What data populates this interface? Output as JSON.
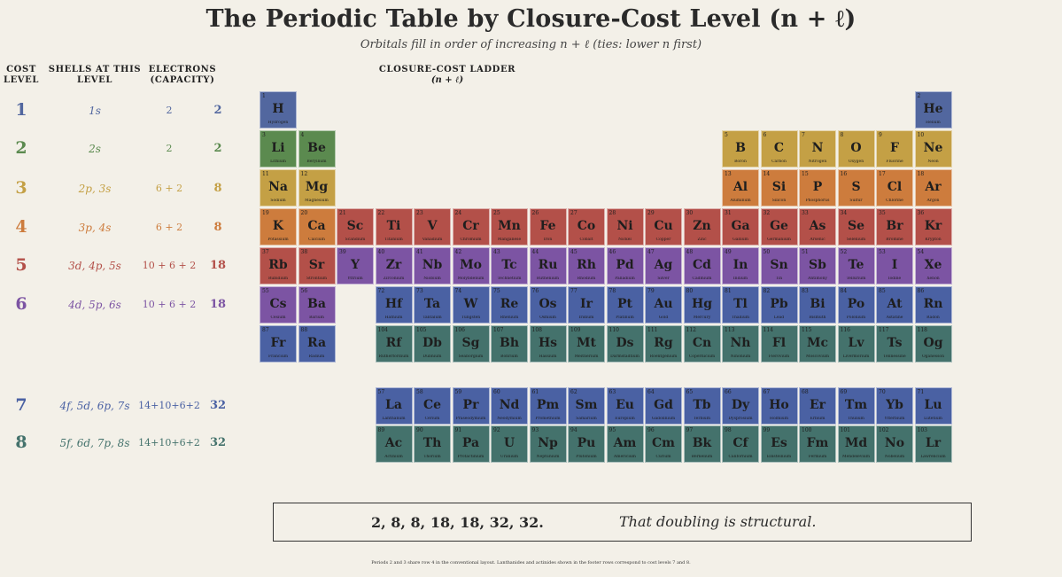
{
  "page": {
    "title": "The Periodic Table by Closure-Cost Level (n + ℓ)",
    "subtitle": "Orbitals fill in order of increasing n + ℓ (ties: lower n first)",
    "footnote": "Periods 2 and 3 share row 4 in the conventional layout. Lanthanides and actinides shown in the footer rows correspond to cost levels 7 and 8."
  },
  "left_headers": {
    "cost_level": [
      "COST",
      "LEVEL"
    ],
    "shells": [
      "SHELLS AT THIS",
      "LEVEL"
    ],
    "electrons": [
      "ELECTRONS",
      "(CAPACITY)"
    ]
  },
  "ladder_header": {
    "title": "CLOSURE-COST LADDER",
    "sub": "(n + ℓ)"
  },
  "colors": {
    "1": "#52679f",
    "2": "#5b8a4f",
    "3": "#c4a045",
    "4": "#cd7c3d",
    "5": "#b35049",
    "6": "#7c54a3",
    "7": "#4a61a3",
    "8": "#44726c",
    "bg": "#f3f0e8"
  },
  "levels": [
    {
      "level": "1",
      "shells": "1s",
      "electrons": "2",
      "total": "2",
      "color": "#52679f"
    },
    {
      "level": "2",
      "shells": "2s",
      "electrons": "2",
      "total": "2",
      "color": "#5b8a4f"
    },
    {
      "level": "3",
      "shells": "2p, 3s",
      "electrons": "6 + 2",
      "total": "8",
      "color": "#c4a045"
    },
    {
      "level": "4",
      "shells": "3p, 4s",
      "electrons": "6 + 2",
      "total": "8",
      "color": "#cd7c3d"
    },
    {
      "level": "5",
      "shells": "3d, 4p, 5s",
      "electrons": "10 + 6 + 2",
      "total": "18",
      "color": "#b35049"
    },
    {
      "level": "6",
      "shells": "4d, 5p, 6s",
      "electrons": "10 + 6 + 2",
      "total": "18",
      "color": "#7c54a3"
    },
    {
      "level": "7",
      "shells": "4f, 5d, 6p, 7s",
      "electrons": "14+10+6+2",
      "total": "32",
      "color": "#4a61a3"
    },
    {
      "level": "8",
      "shells": "5f, 6d, 7p, 8s",
      "electrons": "14+10+6+2",
      "total": "32",
      "color": "#44726c"
    }
  ],
  "elements": [
    {
      "z": 1,
      "s": "H",
      "n": "Hydrogen",
      "r": 1,
      "c": 1,
      "lv": 1
    },
    {
      "z": 2,
      "s": "He",
      "n": "Helium",
      "r": 1,
      "c": 18,
      "lv": 1
    },
    {
      "z": 3,
      "s": "Li",
      "n": "Lithium",
      "r": 2,
      "c": 1,
      "lv": 2
    },
    {
      "z": 4,
      "s": "Be",
      "n": "Beryllium",
      "r": 2,
      "c": 2,
      "lv": 2
    },
    {
      "z": 5,
      "s": "B",
      "n": "Boron",
      "r": 2,
      "c": 13,
      "lv": 3
    },
    {
      "z": 6,
      "s": "C",
      "n": "Carbon",
      "r": 2,
      "c": 14,
      "lv": 3
    },
    {
      "z": 7,
      "s": "N",
      "n": "Nitrogen",
      "r": 2,
      "c": 15,
      "lv": 3
    },
    {
      "z": 8,
      "s": "O",
      "n": "Oxygen",
      "r": 2,
      "c": 16,
      "lv": 3
    },
    {
      "z": 9,
      "s": "F",
      "n": "Fluorine",
      "r": 2,
      "c": 17,
      "lv": 3
    },
    {
      "z": 10,
      "s": "Ne",
      "n": "Neon",
      "r": 2,
      "c": 18,
      "lv": 3
    },
    {
      "z": 11,
      "s": "Na",
      "n": "Sodium",
      "r": 3,
      "c": 1,
      "lv": 3
    },
    {
      "z": 12,
      "s": "Mg",
      "n": "Magnesium",
      "r": 3,
      "c": 2,
      "lv": 3
    },
    {
      "z": 13,
      "s": "Al",
      "n": "Aluminum",
      "r": 3,
      "c": 13,
      "lv": 4
    },
    {
      "z": 14,
      "s": "Si",
      "n": "Silicon",
      "r": 3,
      "c": 14,
      "lv": 4
    },
    {
      "z": 15,
      "s": "P",
      "n": "Phosphorus",
      "r": 3,
      "c": 15,
      "lv": 4
    },
    {
      "z": 16,
      "s": "S",
      "n": "Sulfur",
      "r": 3,
      "c": 16,
      "lv": 4
    },
    {
      "z": 17,
      "s": "Cl",
      "n": "Chlorine",
      "r": 3,
      "c": 17,
      "lv": 4
    },
    {
      "z": 18,
      "s": "Ar",
      "n": "Argon",
      "r": 3,
      "c": 18,
      "lv": 4
    },
    {
      "z": 19,
      "s": "K",
      "n": "Potassium",
      "r": 4,
      "c": 1,
      "lv": 4
    },
    {
      "z": 20,
      "s": "Ca",
      "n": "Calcium",
      "r": 4,
      "c": 2,
      "lv": 4
    },
    {
      "z": 21,
      "s": "Sc",
      "n": "Scandium",
      "r": 4,
      "c": 3,
      "lv": 5
    },
    {
      "z": 22,
      "s": "Ti",
      "n": "Titanium",
      "r": 4,
      "c": 4,
      "lv": 5
    },
    {
      "z": 23,
      "s": "V",
      "n": "Vanadium",
      "r": 4,
      "c": 5,
      "lv": 5
    },
    {
      "z": 24,
      "s": "Cr",
      "n": "Chromium",
      "r": 4,
      "c": 6,
      "lv": 5
    },
    {
      "z": 25,
      "s": "Mn",
      "n": "Manganese",
      "r": 4,
      "c": 7,
      "lv": 5
    },
    {
      "z": 26,
      "s": "Fe",
      "n": "Iron",
      "r": 4,
      "c": 8,
      "lv": 5
    },
    {
      "z": 27,
      "s": "Co",
      "n": "Cobalt",
      "r": 4,
      "c": 9,
      "lv": 5
    },
    {
      "z": 28,
      "s": "Ni",
      "n": "Nickel",
      "r": 4,
      "c": 10,
      "lv": 5
    },
    {
      "z": 29,
      "s": "Cu",
      "n": "Copper",
      "r": 4,
      "c": 11,
      "lv": 5
    },
    {
      "z": 30,
      "s": "Zn",
      "n": "Zinc",
      "r": 4,
      "c": 12,
      "lv": 5
    },
    {
      "z": 31,
      "s": "Ga",
      "n": "Gallium",
      "r": 4,
      "c": 13,
      "lv": 5
    },
    {
      "z": 32,
      "s": "Ge",
      "n": "Germanium",
      "r": 4,
      "c": 14,
      "lv": 5
    },
    {
      "z": 33,
      "s": "As",
      "n": "Arsenic",
      "r": 4,
      "c": 15,
      "lv": 5
    },
    {
      "z": 34,
      "s": "Se",
      "n": "Selenium",
      "r": 4,
      "c": 16,
      "lv": 5
    },
    {
      "z": 35,
      "s": "Br",
      "n": "Bromine",
      "r": 4,
      "c": 17,
      "lv": 5
    },
    {
      "z": 36,
      "s": "Kr",
      "n": "Krypton",
      "r": 4,
      "c": 18,
      "lv": 5
    },
    {
      "z": 37,
      "s": "Rb",
      "n": "Rubidium",
      "r": 5,
      "c": 1,
      "lv": 5
    },
    {
      "z": 38,
      "s": "Sr",
      "n": "Strontium",
      "r": 5,
      "c": 2,
      "lv": 5
    },
    {
      "z": 39,
      "s": "Y",
      "n": "Yttrium",
      "r": 5,
      "c": 3,
      "lv": 6
    },
    {
      "z": 40,
      "s": "Zr",
      "n": "Zirconium",
      "r": 5,
      "c": 4,
      "lv": 6
    },
    {
      "z": 41,
      "s": "Nb",
      "n": "Niobium",
      "r": 5,
      "c": 5,
      "lv": 6
    },
    {
      "z": 42,
      "s": "Mo",
      "n": "Molybdenum",
      "r": 5,
      "c": 6,
      "lv": 6
    },
    {
      "z": 43,
      "s": "Tc",
      "n": "Technetium",
      "r": 5,
      "c": 7,
      "lv": 6
    },
    {
      "z": 44,
      "s": "Ru",
      "n": "Ruthenium",
      "r": 5,
      "c": 8,
      "lv": 6
    },
    {
      "z": 45,
      "s": "Rh",
      "n": "Rhodium",
      "r": 5,
      "c": 9,
      "lv": 6
    },
    {
      "z": 46,
      "s": "Pd",
      "n": "Palladium",
      "r": 5,
      "c": 10,
      "lv": 6
    },
    {
      "z": 47,
      "s": "Ag",
      "n": "Silver",
      "r": 5,
      "c": 11,
      "lv": 6
    },
    {
      "z": 48,
      "s": "Cd",
      "n": "Cadmium",
      "r": 5,
      "c": 12,
      "lv": 6
    },
    {
      "z": 49,
      "s": "In",
      "n": "Indium",
      "r": 5,
      "c": 13,
      "lv": 6
    },
    {
      "z": 50,
      "s": "Sn",
      "n": "Tin",
      "r": 5,
      "c": 14,
      "lv": 6
    },
    {
      "z": 51,
      "s": "Sb",
      "n": "Antimony",
      "r": 5,
      "c": 15,
      "lv": 6
    },
    {
      "z": 52,
      "s": "Te",
      "n": "Tellurium",
      "r": 5,
      "c": 16,
      "lv": 6
    },
    {
      "z": 53,
      "s": "I",
      "n": "Iodine",
      "r": 5,
      "c": 17,
      "lv": 6
    },
    {
      "z": 54,
      "s": "Xe",
      "n": "Xenon",
      "r": 5,
      "c": 18,
      "lv": 6
    },
    {
      "z": 55,
      "s": "Cs",
      "n": "Cesium",
      "r": 6,
      "c": 1,
      "lv": 6
    },
    {
      "z": 56,
      "s": "Ba",
      "n": "Barium",
      "r": 6,
      "c": 2,
      "lv": 6
    },
    {
      "z": 72,
      "s": "Hf",
      "n": "Hafnium",
      "r": 6,
      "c": 4,
      "lv": 7
    },
    {
      "z": 73,
      "s": "Ta",
      "n": "Tantalum",
      "r": 6,
      "c": 5,
      "lv": 7
    },
    {
      "z": 74,
      "s": "W",
      "n": "Tungsten",
      "r": 6,
      "c": 6,
      "lv": 7
    },
    {
      "z": 75,
      "s": "Re",
      "n": "Rhenium",
      "r": 6,
      "c": 7,
      "lv": 7
    },
    {
      "z": 76,
      "s": "Os",
      "n": "Osmium",
      "r": 6,
      "c": 8,
      "lv": 7
    },
    {
      "z": 77,
      "s": "Ir",
      "n": "Iridium",
      "r": 6,
      "c": 9,
      "lv": 7
    },
    {
      "z": 78,
      "s": "Pt",
      "n": "Platinum",
      "r": 6,
      "c": 10,
      "lv": 7
    },
    {
      "z": 79,
      "s": "Au",
      "n": "Gold",
      "r": 6,
      "c": 11,
      "lv": 7
    },
    {
      "z": 80,
      "s": "Hg",
      "n": "Mercury",
      "r": 6,
      "c": 12,
      "lv": 7
    },
    {
      "z": 81,
      "s": "Tl",
      "n": "Thallium",
      "r": 6,
      "c": 13,
      "lv": 7
    },
    {
      "z": 82,
      "s": "Pb",
      "n": "Lead",
      "r": 6,
      "c": 14,
      "lv": 7
    },
    {
      "z": 83,
      "s": "Bi",
      "n": "Bismuth",
      "r": 6,
      "c": 15,
      "lv": 7
    },
    {
      "z": 84,
      "s": "Po",
      "n": "Polonium",
      "r": 6,
      "c": 16,
      "lv": 7
    },
    {
      "z": 85,
      "s": "At",
      "n": "Astatine",
      "r": 6,
      "c": 17,
      "lv": 7
    },
    {
      "z": 86,
      "s": "Rn",
      "n": "Radon",
      "r": 6,
      "c": 18,
      "lv": 7
    },
    {
      "z": 87,
      "s": "Fr",
      "n": "Francium",
      "r": 7,
      "c": 1,
      "lv": 7
    },
    {
      "z": 88,
      "s": "Ra",
      "n": "Radium",
      "r": 7,
      "c": 2,
      "lv": 7
    },
    {
      "z": 104,
      "s": "Rf",
      "n": "Rutherfordium",
      "r": 7,
      "c": 4,
      "lv": 8
    },
    {
      "z": 105,
      "s": "Db",
      "n": "Dubnium",
      "r": 7,
      "c": 5,
      "lv": 8
    },
    {
      "z": 106,
      "s": "Sg",
      "n": "Seaborgium",
      "r": 7,
      "c": 6,
      "lv": 8
    },
    {
      "z": 107,
      "s": "Bh",
      "n": "Bohrium",
      "r": 7,
      "c": 7,
      "lv": 8
    },
    {
      "z": 108,
      "s": "Hs",
      "n": "Hassium",
      "r": 7,
      "c": 8,
      "lv": 8
    },
    {
      "z": 109,
      "s": "Mt",
      "n": "Meitnerium",
      "r": 7,
      "c": 9,
      "lv": 8
    },
    {
      "z": 110,
      "s": "Ds",
      "n": "Darmstadtium",
      "r": 7,
      "c": 10,
      "lv": 8
    },
    {
      "z": 111,
      "s": "Rg",
      "n": "Roentgenium",
      "r": 7,
      "c": 11,
      "lv": 8
    },
    {
      "z": 112,
      "s": "Cn",
      "n": "Copernicium",
      "r": 7,
      "c": 12,
      "lv": 8
    },
    {
      "z": 113,
      "s": "Nh",
      "n": "Nihonium",
      "r": 7,
      "c": 13,
      "lv": 8
    },
    {
      "z": 114,
      "s": "Fl",
      "n": "Flerovium",
      "r": 7,
      "c": 14,
      "lv": 8
    },
    {
      "z": 115,
      "s": "Mc",
      "n": "Moscovium",
      "r": 7,
      "c": 15,
      "lv": 8
    },
    {
      "z": 116,
      "s": "Lv",
      "n": "Livermorium",
      "r": 7,
      "c": 16,
      "lv": 8
    },
    {
      "z": 117,
      "s": "Ts",
      "n": "Tennessine",
      "r": 7,
      "c": 17,
      "lv": 8
    },
    {
      "z": 118,
      "s": "Og",
      "n": "Oganesson",
      "r": 7,
      "c": 18,
      "lv": 8
    },
    {
      "z": 57,
      "s": "La",
      "n": "Lanthanum",
      "r": 9,
      "c": 4,
      "lv": 7
    },
    {
      "z": 58,
      "s": "Ce",
      "n": "Cerium",
      "r": 9,
      "c": 5,
      "lv": 7
    },
    {
      "z": 59,
      "s": "Pr",
      "n": "Praseodymium",
      "r": 9,
      "c": 6,
      "lv": 7
    },
    {
      "z": 60,
      "s": "Nd",
      "n": "Neodymium",
      "r": 9,
      "c": 7,
      "lv": 7
    },
    {
      "z": 61,
      "s": "Pm",
      "n": "Promethium",
      "r": 9,
      "c": 8,
      "lv": 7
    },
    {
      "z": 62,
      "s": "Sm",
      "n": "Samarium",
      "r": 9,
      "c": 9,
      "lv": 7
    },
    {
      "z": 63,
      "s": "Eu",
      "n": "Europium",
      "r": 9,
      "c": 10,
      "lv": 7
    },
    {
      "z": 64,
      "s": "Gd",
      "n": "Gadolinium",
      "r": 9,
      "c": 11,
      "lv": 7
    },
    {
      "z": 65,
      "s": "Tb",
      "n": "Terbium",
      "r": 9,
      "c": 12,
      "lv": 7
    },
    {
      "z": 66,
      "s": "Dy",
      "n": "Dysprosium",
      "r": 9,
      "c": 13,
      "lv": 7
    },
    {
      "z": 67,
      "s": "Ho",
      "n": "Holmium",
      "r": 9,
      "c": 14,
      "lv": 7
    },
    {
      "z": 68,
      "s": "Er",
      "n": "Erbium",
      "r": 9,
      "c": 15,
      "lv": 7
    },
    {
      "z": 69,
      "s": "Tm",
      "n": "Thulium",
      "r": 9,
      "c": 16,
      "lv": 7
    },
    {
      "z": 70,
      "s": "Yb",
      "n": "Ytterbium",
      "r": 9,
      "c": 17,
      "lv": 7
    },
    {
      "z": 71,
      "s": "Lu",
      "n": "Lutetium",
      "r": 9,
      "c": 18,
      "lv": 7
    },
    {
      "z": 89,
      "s": "Ac",
      "n": "Actinium",
      "r": 10,
      "c": 4,
      "lv": 8
    },
    {
      "z": 90,
      "s": "Th",
      "n": "Thorium",
      "r": 10,
      "c": 5,
      "lv": 8
    },
    {
      "z": 91,
      "s": "Pa",
      "n": "Protactinium",
      "r": 10,
      "c": 6,
      "lv": 8
    },
    {
      "z": 92,
      "s": "U",
      "n": "Uranium",
      "r": 10,
      "c": 7,
      "lv": 8
    },
    {
      "z": 93,
      "s": "Np",
      "n": "Neptunium",
      "r": 10,
      "c": 8,
      "lv": 8
    },
    {
      "z": 94,
      "s": "Pu",
      "n": "Plutonium",
      "r": 10,
      "c": 9,
      "lv": 8
    },
    {
      "z": 95,
      "s": "Am",
      "n": "Americium",
      "r": 10,
      "c": 10,
      "lv": 8
    },
    {
      "z": 96,
      "s": "Cm",
      "n": "Curium",
      "r": 10,
      "c": 11,
      "lv": 8
    },
    {
      "z": 97,
      "s": "Bk",
      "n": "Berkelium",
      "r": 10,
      "c": 12,
      "lv": 8
    },
    {
      "z": 98,
      "s": "Cf",
      "n": "Californium",
      "r": 10,
      "c": 13,
      "lv": 8
    },
    {
      "z": 99,
      "s": "Es",
      "n": "Einsteinium",
      "r": 10,
      "c": 14,
      "lv": 8
    },
    {
      "z": 100,
      "s": "Fm",
      "n": "Fermium",
      "r": 10,
      "c": 15,
      "lv": 8
    },
    {
      "z": 101,
      "s": "Md",
      "n": "Mendelevium",
      "r": 10,
      "c": 16,
      "lv": 8
    },
    {
      "z": 102,
      "s": "No",
      "n": "Nobelium",
      "r": 10,
      "c": 17,
      "lv": 8
    },
    {
      "z": 103,
      "s": "Lr",
      "n": "Lawrencium",
      "r": 10,
      "c": 18,
      "lv": 8
    }
  ],
  "summary": {
    "sequence": "2, 8, 8, 18, 18, 32, 32.",
    "quote": "That doubling is structural."
  }
}
